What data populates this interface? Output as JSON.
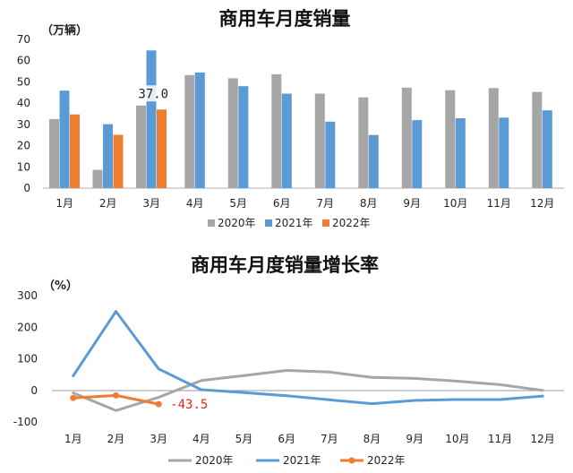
{
  "colors": {
    "2020": "#a6a6a6",
    "2021": "#5b9bd5",
    "2022": "#ed7d31",
    "label_bar": "#222222",
    "label_line": "#e8251b"
  },
  "chart_data": [
    {
      "type": "bar",
      "title": "商用车月度销量",
      "ylabel": "（万辆）",
      "ylim": [
        0,
        70
      ],
      "yticks": [
        "0",
        "10",
        "20",
        "30",
        "40",
        "50",
        "60",
        "70"
      ],
      "categories": [
        "1月",
        "2月",
        "3月",
        "4月",
        "5月",
        "6月",
        "7月",
        "8月",
        "9月",
        "10月",
        "11月",
        "12月"
      ],
      "series": [
        {
          "name": "2020年",
          "values": [
            32.5,
            8.6,
            38.9,
            53.2,
            51.7,
            53.6,
            44.5,
            42.7,
            47.3,
            46.1,
            47.1,
            45.3
          ]
        },
        {
          "name": "2021年",
          "values": [
            45.9,
            30.1,
            64.8,
            54.4,
            48.0,
            44.5,
            31.3,
            25.0,
            32.0,
            32.9,
            33.2,
            36.6
          ]
        },
        {
          "name": "2022年",
          "values": [
            34.7,
            25.1,
            37.0,
            null,
            null,
            null,
            null,
            null,
            null,
            null,
            null,
            null
          ]
        }
      ],
      "data_labels": [
        {
          "series": 2,
          "index": 2,
          "text": "37.0"
        }
      ],
      "legend_position": "bottom"
    },
    {
      "type": "line",
      "title": "商用车月度销量增长率",
      "ylabel": "（%）",
      "ylim": [
        -100,
        300
      ],
      "yticks": [
        "-100",
        "0",
        "100",
        "200",
        "300"
      ],
      "categories": [
        "1月",
        "2月",
        "3月",
        "4月",
        "5月",
        "6月",
        "7月",
        "8月",
        "9月",
        "10月",
        "11月",
        "12月"
      ],
      "series": [
        {
          "name": "2020年",
          "values": [
            -8,
            -64,
            -22,
            31,
            47,
            63,
            58,
            41,
            38,
            29,
            18,
            0
          ]
        },
        {
          "name": "2021年",
          "values": [
            46,
            250,
            68,
            2,
            -7,
            -17,
            -30,
            -42,
            -32,
            -29,
            -29,
            -18
          ]
        },
        {
          "name": "2022年",
          "values": [
            -24,
            -16,
            -43.5,
            null,
            null,
            null,
            null,
            null,
            null,
            null,
            null,
            null
          ]
        }
      ],
      "data_labels": [
        {
          "series": 2,
          "index": 2,
          "text": "-43.5"
        }
      ],
      "legend_position": "bottom"
    }
  ]
}
